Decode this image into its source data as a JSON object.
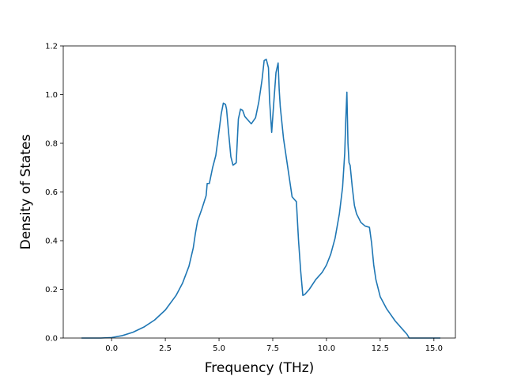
{
  "chart_data": {
    "type": "line",
    "xlabel": "Frequency (THz)",
    "ylabel": "Density of States",
    "xlim": [
      -2.25,
      16.0
    ],
    "ylim": [
      0.0,
      1.2
    ],
    "x_ticks": [
      0.0,
      2.5,
      5.0,
      7.5,
      10.0,
      12.5,
      15.0
    ],
    "x_tick_labels": [
      "0.0",
      "2.5",
      "5.0",
      "7.5",
      "10.0",
      "12.5",
      "15.0"
    ],
    "y_ticks": [
      0.0,
      0.2,
      0.4,
      0.6,
      0.8,
      1.0,
      1.2
    ],
    "y_tick_labels": [
      "0.0",
      "0.2",
      "0.4",
      "0.6",
      "0.8",
      "1.0",
      "1.2"
    ],
    "grid": false,
    "series": [
      {
        "color": "#1f77b4",
        "x": [
          -1.4,
          -0.5,
          0.0,
          0.5,
          1.0,
          1.5,
          2.0,
          2.5,
          3.0,
          3.3,
          3.6,
          3.8,
          3.9,
          4.0,
          4.2,
          4.4,
          4.45,
          4.55,
          4.7,
          4.85,
          5.0,
          5.1,
          5.2,
          5.3,
          5.35,
          5.45,
          5.55,
          5.65,
          5.8,
          5.9,
          6.0,
          6.1,
          6.2,
          6.3,
          6.5,
          6.7,
          6.85,
          7.0,
          7.1,
          7.2,
          7.3,
          7.35,
          7.45,
          7.55,
          7.65,
          7.75,
          7.8,
          7.85,
          8.0,
          8.2,
          8.4,
          8.6,
          8.7,
          8.8,
          8.9,
          9.0,
          9.2,
          9.5,
          9.8,
          10.0,
          10.2,
          10.4,
          10.6,
          10.75,
          10.85,
          10.9,
          10.95,
          11.0,
          11.05,
          11.1,
          11.2,
          11.3,
          11.4,
          11.6,
          11.8,
          12.0,
          12.1,
          12.2,
          12.3,
          12.5,
          12.8,
          13.2,
          13.5,
          13.75,
          13.85,
          14.0,
          15.3
        ],
        "y": [
          0.0,
          0.0,
          0.002,
          0.01,
          0.024,
          0.045,
          0.074,
          0.115,
          0.175,
          0.225,
          0.295,
          0.37,
          0.43,
          0.48,
          0.53,
          0.585,
          0.635,
          0.635,
          0.7,
          0.75,
          0.85,
          0.92,
          0.965,
          0.96,
          0.94,
          0.84,
          0.745,
          0.71,
          0.72,
          0.9,
          0.94,
          0.935,
          0.91,
          0.9,
          0.88,
          0.905,
          0.97,
          1.06,
          1.14,
          1.145,
          1.11,
          0.98,
          0.845,
          0.97,
          1.09,
          1.13,
          1.02,
          0.95,
          0.82,
          0.7,
          0.58,
          0.56,
          0.4,
          0.275,
          0.175,
          0.18,
          0.2,
          0.24,
          0.27,
          0.3,
          0.345,
          0.41,
          0.51,
          0.62,
          0.76,
          0.9,
          1.01,
          0.8,
          0.72,
          0.71,
          0.62,
          0.545,
          0.51,
          0.475,
          0.46,
          0.455,
          0.39,
          0.3,
          0.24,
          0.17,
          0.12,
          0.07,
          0.04,
          0.015,
          0.0,
          0.0,
          0.0
        ]
      }
    ]
  }
}
